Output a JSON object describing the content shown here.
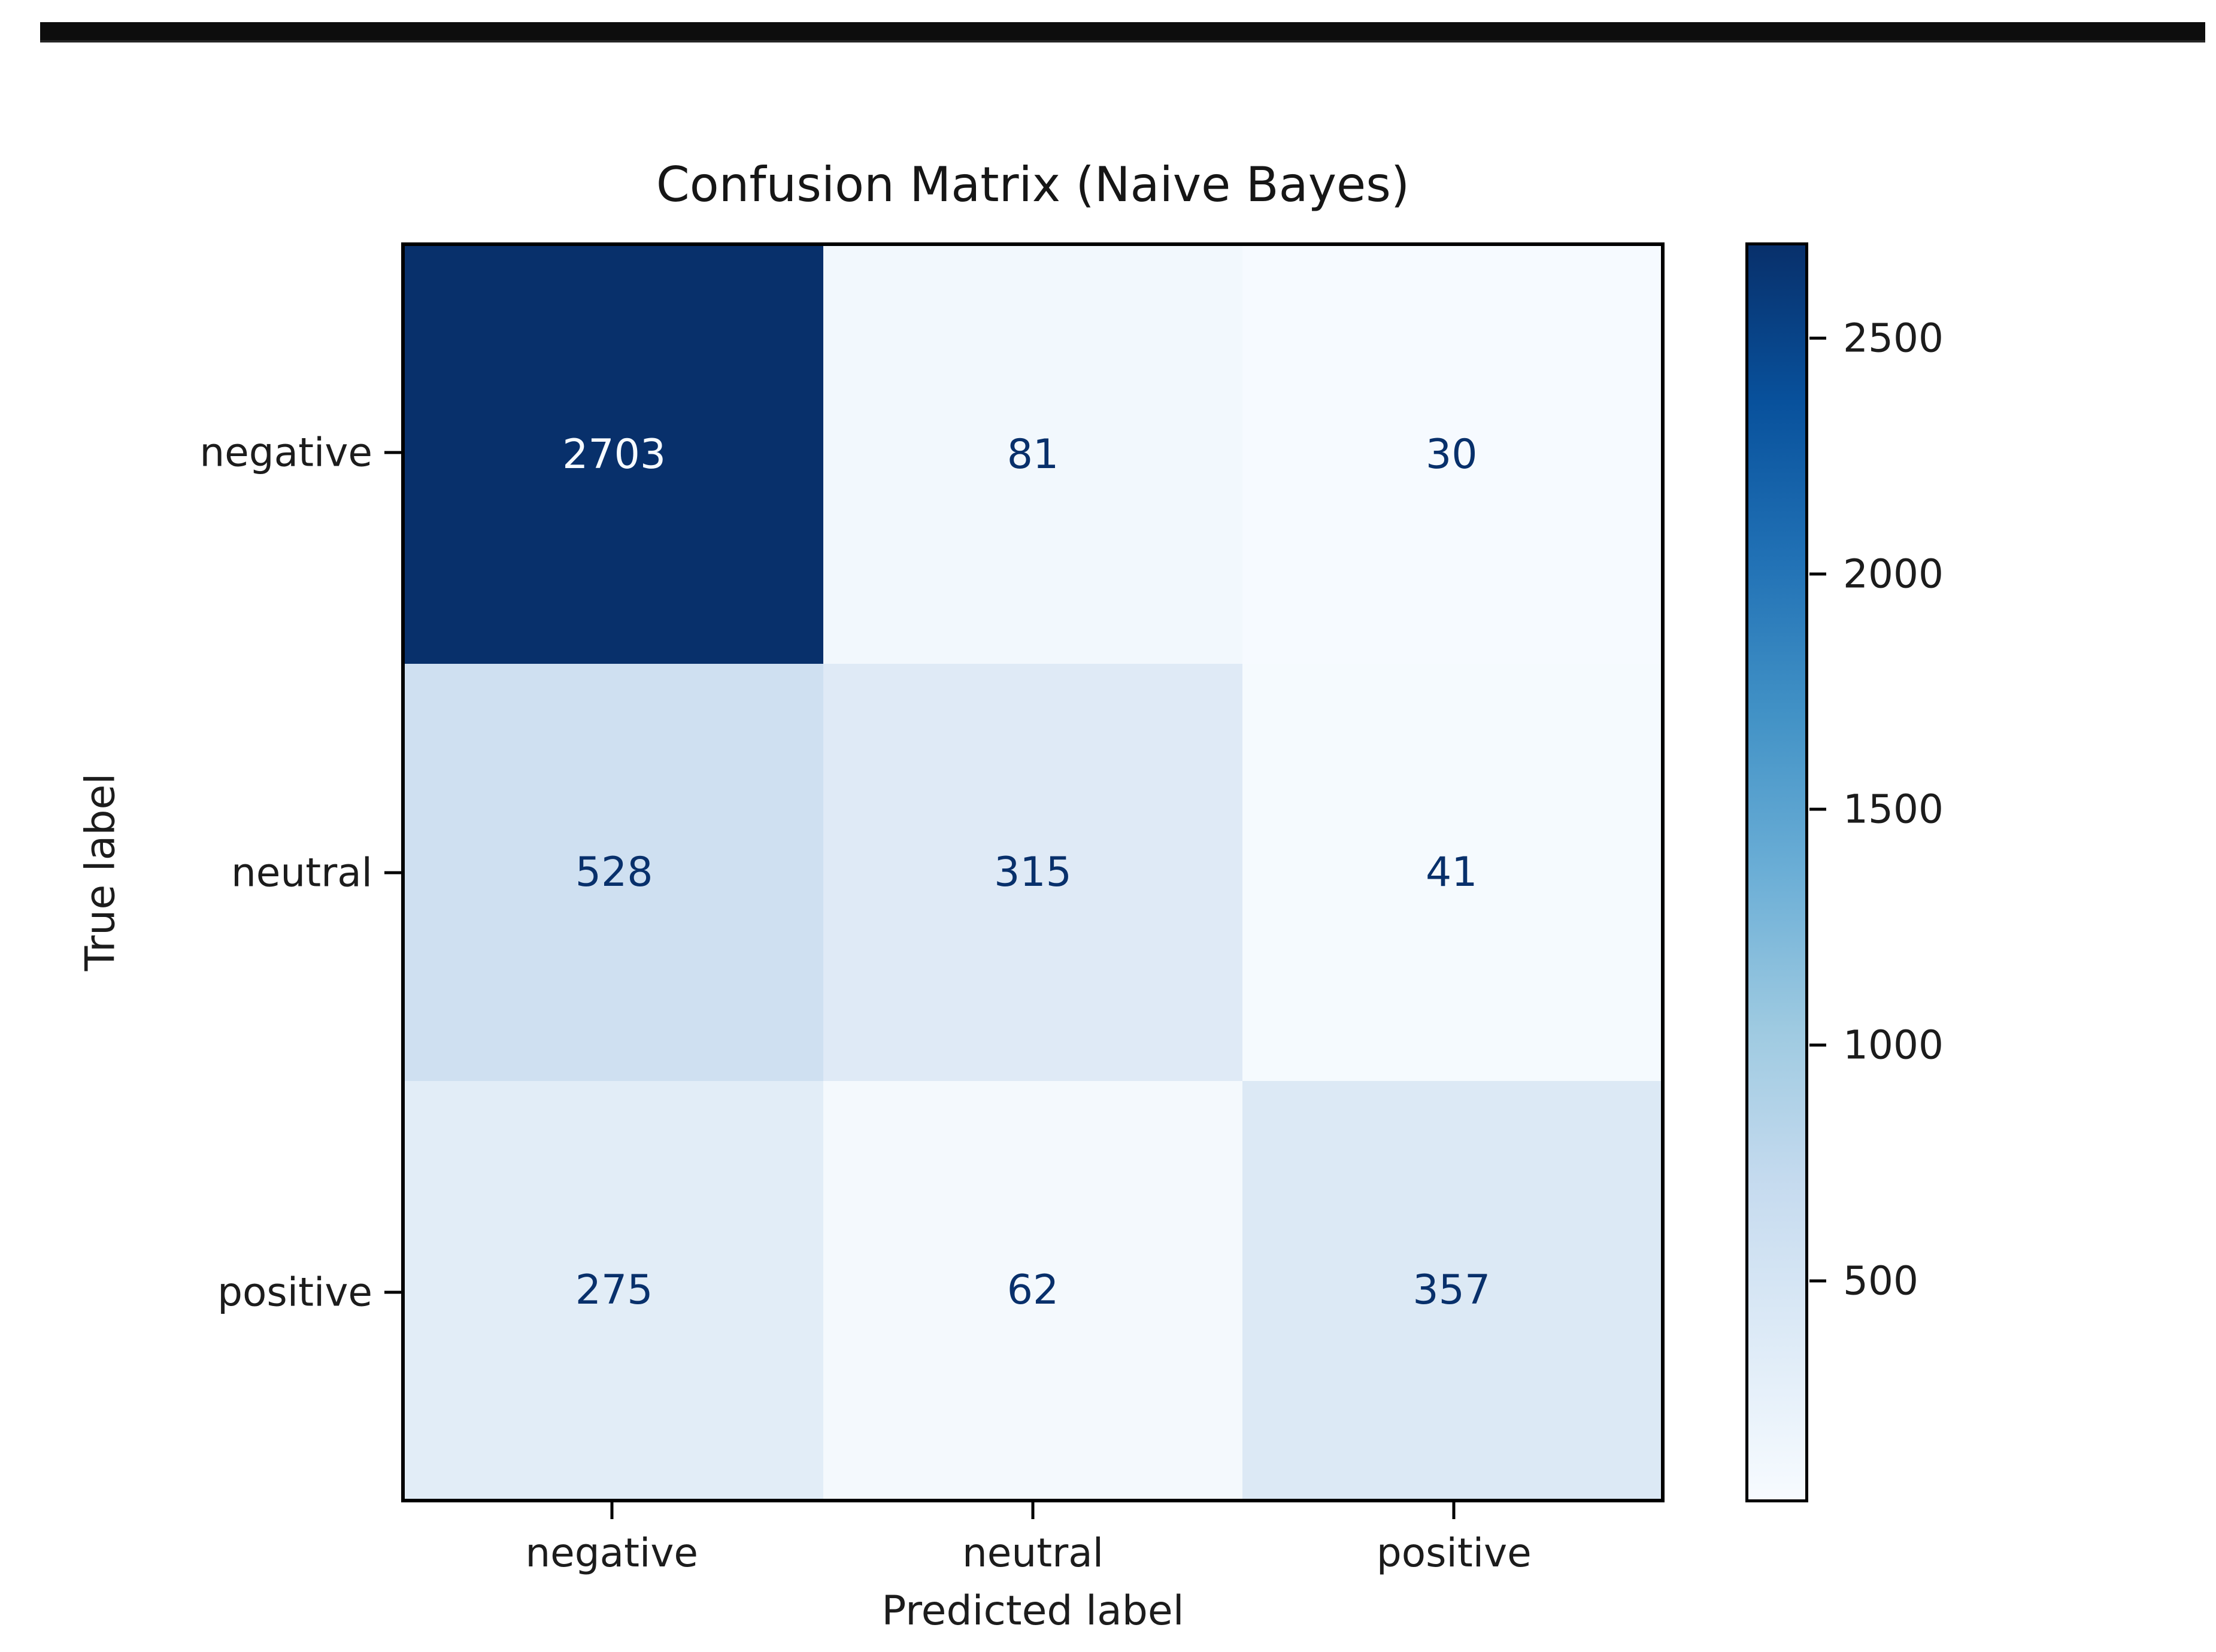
{
  "page": {
    "background_color": "#ffffff",
    "top_bar_color": "#0d0d0d"
  },
  "chart_data": {
    "type": "heatmap",
    "title": "Confusion Matrix (Naive Bayes)",
    "xlabel": "Predicted label",
    "ylabel": "True label",
    "x_categories": [
      "negative",
      "neutral",
      "positive"
    ],
    "y_categories": [
      "negative",
      "neutral",
      "positive"
    ],
    "matrix": [
      [
        2703,
        81,
        30
      ],
      [
        528,
        315,
        41
      ],
      [
        275,
        62,
        357
      ]
    ],
    "vmin": 30,
    "vmax": 2703,
    "colormap": "Blues",
    "colormap_stops": [
      "#08306b",
      "#08519c",
      "#2171b5",
      "#4292c6",
      "#6baed6",
      "#9ecae1",
      "#c6dbef",
      "#deebf7",
      "#f7fbff"
    ],
    "cell_colors": [
      [
        "#08306b",
        "#f2f8fd",
        "#f6faff"
      ],
      [
        "#cfe0f1",
        "#dfeaf6",
        "#f5fafe"
      ],
      [
        "#e2edf7",
        "#f4f9fd",
        "#dce9f5"
      ]
    ],
    "cell_text_colors": [
      [
        "#f7fbff",
        "#08306b",
        "#08306b"
      ],
      [
        "#08306b",
        "#08306b",
        "#08306b"
      ],
      [
        "#08306b",
        "#08306b",
        "#08306b"
      ]
    ],
    "colorbar_ticks": [
      2500,
      2000,
      1500,
      1000,
      500
    ],
    "legend_position": "right",
    "grid": false
  }
}
